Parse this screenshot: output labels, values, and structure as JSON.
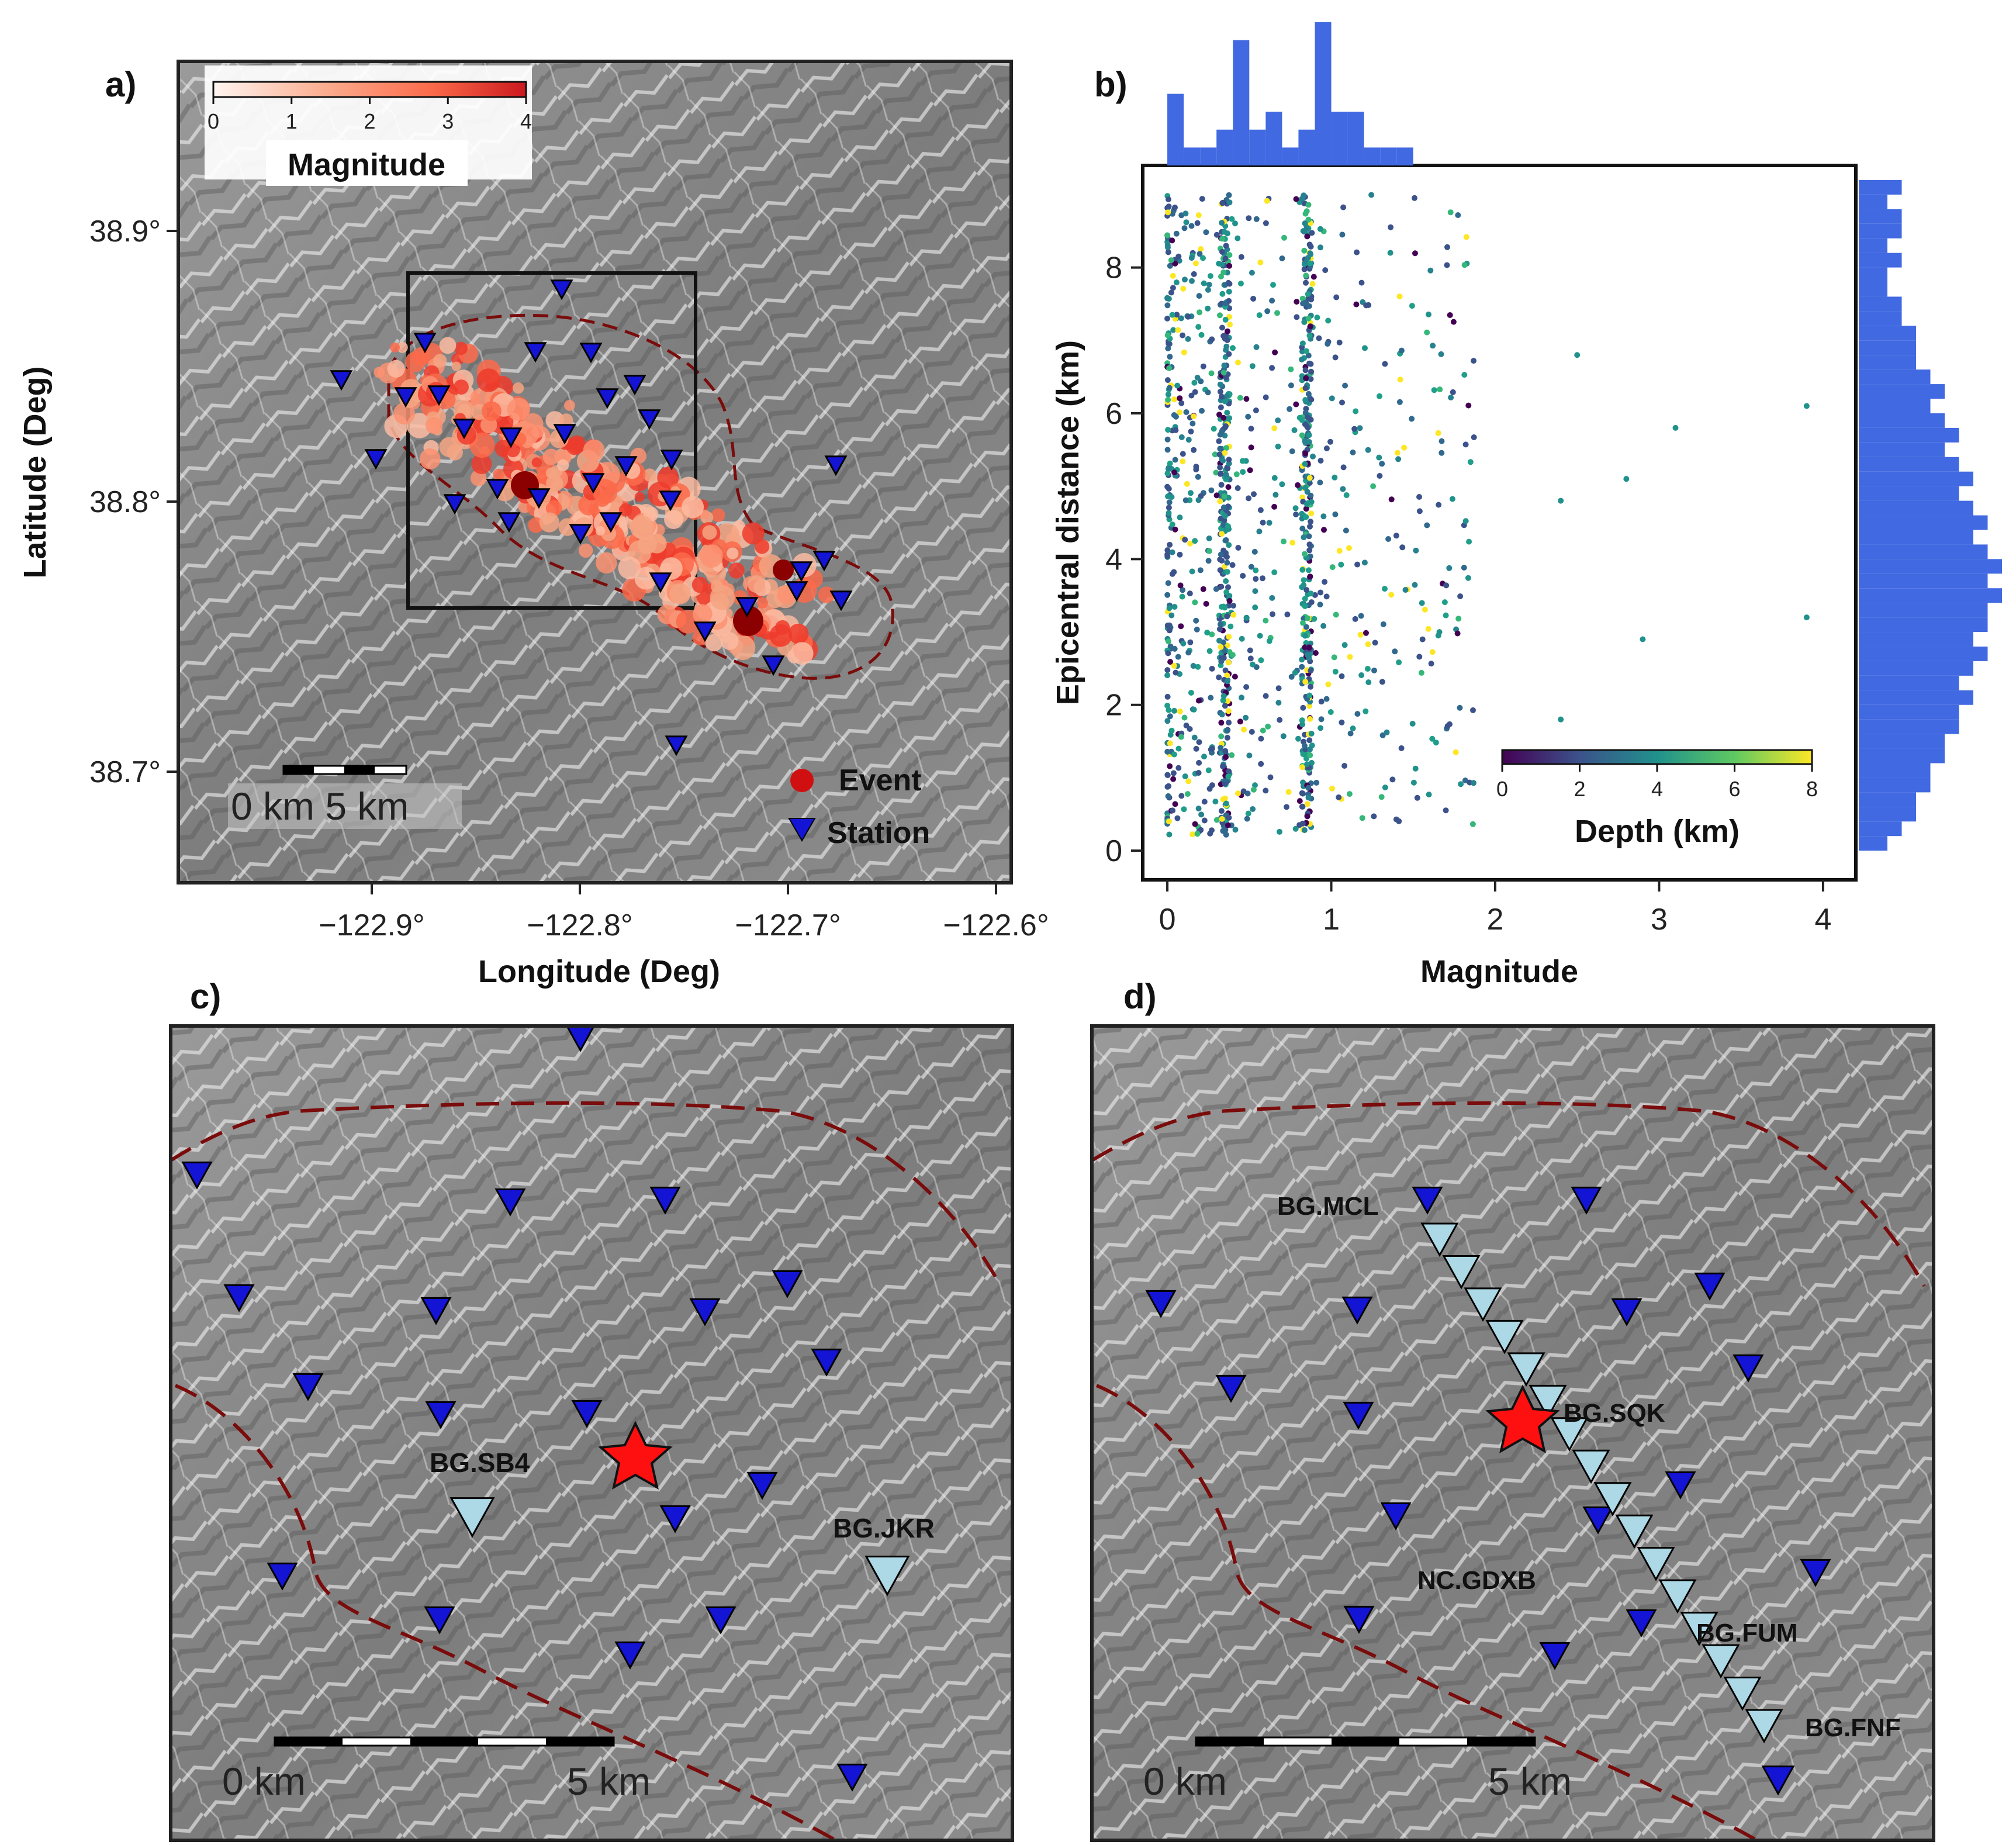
{
  "panels": {
    "a": {
      "label": "a)",
      "xlabel": "Longitude (Deg)",
      "ylabel": "Latitude (Deg)",
      "x_ticks": [
        "−122.9°",
        "−122.8°",
        "−122.7°",
        "−122.6°"
      ],
      "y_ticks": [
        "38.9°",
        "38.8°",
        "38.7°"
      ],
      "colorbar": {
        "title": "Magnitude",
        "ticks": [
          "0",
          "1",
          "2",
          "3",
          "4"
        ],
        "range": [
          0,
          4
        ]
      },
      "scalebar": {
        "label": "0 km 5 km"
      },
      "legend": {
        "event_label": "Event",
        "station_label": "Station"
      },
      "colors": {
        "event": "#d01010",
        "station": "#1414d4",
        "aoi": "#7a0c0c"
      }
    },
    "b": {
      "label": "b)",
      "xlabel": "Magnitude",
      "ylabel": "Epicentral distance (km)",
      "x_ticks": [
        "0",
        "1",
        "2",
        "3",
        "4"
      ],
      "y_ticks": [
        "0",
        "2",
        "4",
        "6",
        "8"
      ],
      "colorbar": {
        "title": "Depth (km)",
        "ticks": [
          "0",
          "2",
          "4",
          "6",
          "8"
        ],
        "range": [
          0,
          8
        ]
      },
      "colors": {
        "histogram": "#4169e1"
      }
    },
    "c": {
      "label": "c)",
      "station_labels": [
        "BG.SB4",
        "BG.JKR"
      ],
      "scalebar": {
        "start": "0 km",
        "end": "5 km"
      }
    },
    "d": {
      "label": "d)",
      "station_labels": [
        "BG.MCL",
        "BG.SQK",
        "NC.GDXB",
        "BG.FUM",
        "BG.FNF"
      ],
      "scalebar": {
        "start": "0 km",
        "end": "5 km"
      }
    }
  },
  "chart_data": {
    "type": "scatter",
    "xlabel": "Magnitude",
    "ylabel": "Epicentral distance (km)",
    "xlim": [
      -0.15,
      4.2
    ],
    "ylim": [
      -0.4,
      9.4
    ],
    "colorbar": {
      "label": "Depth (km)",
      "range": [
        0,
        8
      ]
    },
    "magnitude_histogram": {
      "bin_width": 0.1,
      "bin_start": 0,
      "counts": [
        4,
        1,
        1,
        2,
        7,
        2,
        3,
        1,
        2,
        8,
        3,
        3,
        1,
        1,
        1,
        0,
        0,
        0,
        0,
        0
      ]
    },
    "distance_histogram": {
      "bin_width": 0.2,
      "bin_start": 0,
      "counts": [
        2,
        3,
        4,
        4,
        5,
        5,
        6,
        6,
        7,
        7,
        8,
        7,
        8,
        9,
        8,
        9,
        9,
        10,
        9,
        10,
        9,
        8,
        9,
        8,
        7,
        8,
        7,
        6,
        7,
        6,
        5,
        6,
        5,
        4,
        4,
        4,
        3,
        3,
        2,
        2,
        3,
        2,
        3,
        3,
        2,
        3
      ]
    }
  }
}
